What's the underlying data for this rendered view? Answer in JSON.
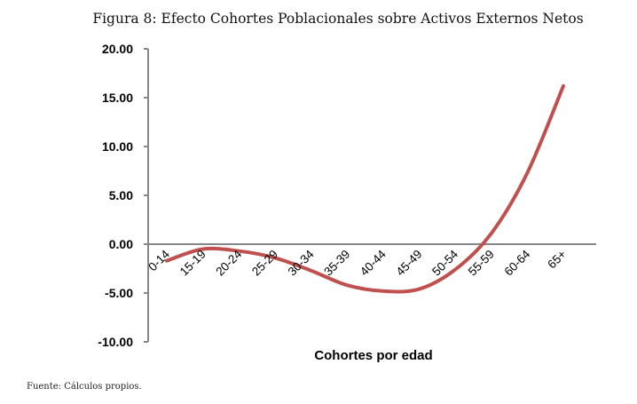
{
  "chart_data": {
    "type": "line",
    "title": "Figura 8: Efecto Cohortes Poblacionales sobre Activos Externos Netos",
    "xlabel": "Cohortes por edad",
    "ylabel": "",
    "categories": [
      "0-14",
      "15-19",
      "20-24",
      "25-29",
      "30-34",
      "35-39",
      "40-44",
      "45-49",
      "50-54",
      "55-59",
      "60-64",
      "65+"
    ],
    "series": [
      {
        "name": "Efecto",
        "values": [
          -1.7,
          -0.5,
          -0.7,
          -1.4,
          -2.7,
          -4.2,
          -4.8,
          -4.6,
          -2.6,
          1.1,
          7.3,
          16.2
        ],
        "color": "#c0504d"
      }
    ],
    "ylim": [
      -10,
      20
    ],
    "yticks": [
      "20.00",
      "15.00",
      "10.00",
      "5.00",
      "0.00",
      "-5.00",
      "-10.00"
    ],
    "grid": false
  },
  "source": "Fuente: Cálculos propios."
}
